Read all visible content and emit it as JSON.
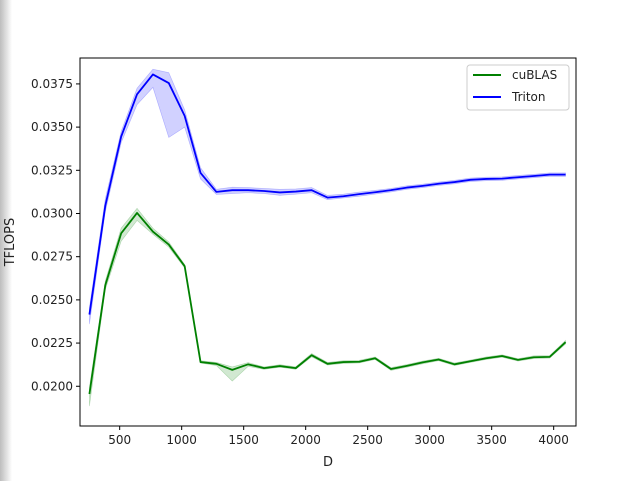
{
  "chart_data": {
    "type": "line",
    "title": "",
    "xlabel": "D",
    "ylabel": "TFLOPS",
    "xlim": [
      180,
      4180
    ],
    "ylim": [
      0.0177,
      0.039
    ],
    "xticks": [
      500,
      1000,
      1500,
      2000,
      2500,
      3000,
      3500,
      4000
    ],
    "xtick_labels": [
      "500",
      "1000",
      "1500",
      "2000",
      "2500",
      "3000",
      "3500",
      "4000"
    ],
    "yticks": [
      0.02,
      0.0225,
      0.025,
      0.0275,
      0.03,
      0.0325,
      0.035,
      0.0375
    ],
    "ytick_labels": [
      "0.0200",
      "0.0225",
      "0.0250",
      "0.0275",
      "0.0300",
      "0.0325",
      "0.0350",
      "0.0375"
    ],
    "grid": false,
    "legend_position": "top-right",
    "x": [
      256,
      384,
      512,
      640,
      768,
      896,
      1024,
      1152,
      1280,
      1408,
      1536,
      1664,
      1792,
      1920,
      2048,
      2176,
      2304,
      2432,
      2560,
      2688,
      2816,
      2944,
      3072,
      3200,
      3328,
      3456,
      3584,
      3712,
      3840,
      3968,
      4096
    ],
    "series": [
      {
        "name": "cuBLAS",
        "color": "#008000",
        "values": [
          0.01955,
          0.02585,
          0.02885,
          0.03003,
          0.02895,
          0.0282,
          0.02695,
          0.0214,
          0.0213,
          0.02095,
          0.02127,
          0.02105,
          0.02117,
          0.02105,
          0.0218,
          0.0213,
          0.0214,
          0.02142,
          0.02162,
          0.021,
          0.02118,
          0.02138,
          0.02155,
          0.02127,
          0.02145,
          0.02162,
          0.02175,
          0.02153,
          0.02168,
          0.0217,
          0.02255
        ],
        "band_low": [
          0.01885,
          0.0256,
          0.0284,
          0.0296,
          0.0288,
          0.02805,
          0.02685,
          0.02135,
          0.0212,
          0.0203,
          0.02115,
          0.02098,
          0.0211,
          0.02098,
          0.0217,
          0.02123,
          0.02132,
          0.02135,
          0.02155,
          0.02092,
          0.0211,
          0.0213,
          0.02148,
          0.0212,
          0.02138,
          0.02155,
          0.02168,
          0.02146,
          0.0216,
          0.02163,
          0.02245
        ],
        "band_high": [
          0.01995,
          0.0261,
          0.02915,
          0.0303,
          0.02915,
          0.02835,
          0.02705,
          0.02148,
          0.02138,
          0.02112,
          0.02137,
          0.02112,
          0.02125,
          0.02113,
          0.0219,
          0.02138,
          0.02148,
          0.0215,
          0.0217,
          0.02108,
          0.02126,
          0.02146,
          0.02162,
          0.02135,
          0.02152,
          0.0217,
          0.02182,
          0.0216,
          0.02176,
          0.02178,
          0.02265
        ]
      },
      {
        "name": "Triton",
        "color": "#0000ff",
        "values": [
          0.02415,
          0.03045,
          0.03445,
          0.0369,
          0.03805,
          0.03755,
          0.03565,
          0.03235,
          0.03125,
          0.03135,
          0.03135,
          0.0313,
          0.03122,
          0.03127,
          0.03135,
          0.03092,
          0.031,
          0.03112,
          0.03123,
          0.03135,
          0.0315,
          0.0316,
          0.03172,
          0.03182,
          0.03195,
          0.032,
          0.03202,
          0.0321,
          0.03217,
          0.03225,
          0.03225
        ],
        "band_low": [
          0.0236,
          0.0301,
          0.0341,
          0.0363,
          0.0373,
          0.0344,
          0.035,
          0.032,
          0.0311,
          0.03115,
          0.0312,
          0.03115,
          0.03105,
          0.03112,
          0.0312,
          0.0308,
          0.0309,
          0.031,
          0.03112,
          0.03125,
          0.0314,
          0.0315,
          0.03162,
          0.03172,
          0.03185,
          0.0319,
          0.03192,
          0.032,
          0.03207,
          0.03215,
          0.03215
        ],
        "band_high": [
          0.02455,
          0.03085,
          0.03475,
          0.03725,
          0.03835,
          0.03815,
          0.036,
          0.03265,
          0.0314,
          0.03152,
          0.0315,
          0.03145,
          0.0314,
          0.03142,
          0.0315,
          0.03105,
          0.03112,
          0.03124,
          0.03134,
          0.03145,
          0.0316,
          0.0317,
          0.03182,
          0.03192,
          0.03205,
          0.0321,
          0.03212,
          0.0322,
          0.03227,
          0.03235,
          0.03235
        ]
      }
    ]
  }
}
